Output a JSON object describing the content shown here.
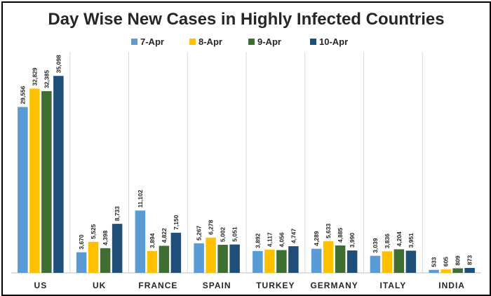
{
  "chart_data": {
    "type": "bar",
    "title": "Day Wise New Cases in Highly Infected Countries",
    "xlabel": "",
    "ylabel": "",
    "ylim": [
      0,
      40000
    ],
    "legend_position": "top-center",
    "categories": [
      "US",
      "UK",
      "FRANCE",
      "SPAIN",
      "TURKEY",
      "GERMANY",
      "ITALY",
      "INDIA"
    ],
    "series": [
      {
        "name": "7-Apr",
        "color": "#5B9BD5",
        "values": [
          29556,
          3670,
          11102,
          5267,
          3892,
          4289,
          3039,
          533
        ],
        "labels": [
          "29,556",
          "3,670",
          "11,102",
          "5,267",
          "3,892",
          "4,289",
          "3,039",
          "533"
        ]
      },
      {
        "name": "8-Apr",
        "color": "#FFC000",
        "values": [
          32829,
          5525,
          3894,
          6278,
          4117,
          5633,
          3836,
          605
        ],
        "labels": [
          "32,829",
          "5,525",
          "3,894",
          "6,278",
          "4,117",
          "5,633",
          "3,836",
          "605"
        ]
      },
      {
        "name": "9-Apr",
        "color": "#3F6E33",
        "values": [
          32385,
          4398,
          4822,
          5002,
          4056,
          4885,
          4204,
          809
        ],
        "labels": [
          "32,385",
          "4,398",
          "4,822",
          "5,002",
          "4,056",
          "4,885",
          "4,204",
          "809"
        ]
      },
      {
        "name": "10-Apr",
        "color": "#1F4E79",
        "values": [
          35098,
          8733,
          7150,
          5051,
          4747,
          3990,
          3951,
          873
        ],
        "labels": [
          "35,098",
          "8,733",
          "7,150",
          "5,051",
          "4,747",
          "3,990",
          "3,951",
          "873"
        ]
      }
    ]
  }
}
